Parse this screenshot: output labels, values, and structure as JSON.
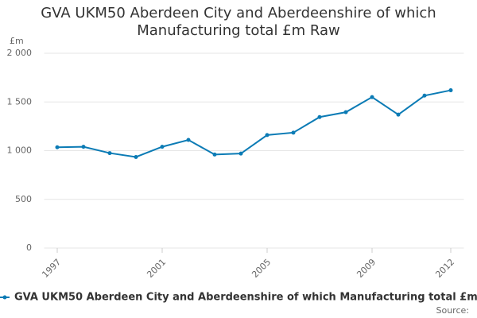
{
  "chart_data": {
    "type": "line",
    "title": "GVA UKM50 Aberdeen City and Aberdeenshire of which Manufacturing total £m Raw",
    "y_label": "£m",
    "source": "Source:",
    "x": [
      1997,
      1998,
      1999,
      2000,
      2001,
      2002,
      2003,
      2004,
      2005,
      2006,
      2007,
      2008,
      2009,
      2010,
      2011,
      2012
    ],
    "xlim": [
      1996.5,
      2012.5
    ],
    "xticks": [
      1997,
      2001,
      2005,
      2009,
      2012
    ],
    "ylim": [
      0,
      2000
    ],
    "yticks": [
      0,
      500,
      {
        "value": 1000,
        "label": "1 000"
      },
      {
        "value": 1500,
        "label": "1 500"
      },
      {
        "value": 2000,
        "label": "2 000"
      }
    ],
    "grid": true,
    "series": [
      {
        "name": "GVA UKM50 Aberdeen City and Aberdeenshire of which Manufacturing total £m Raw",
        "color": "#0b7bb5",
        "values": [
          1035,
          1040,
          975,
          935,
          1040,
          1110,
          960,
          970,
          1160,
          1185,
          1345,
          1395,
          1550,
          1370,
          1565,
          1620
        ]
      }
    ]
  }
}
